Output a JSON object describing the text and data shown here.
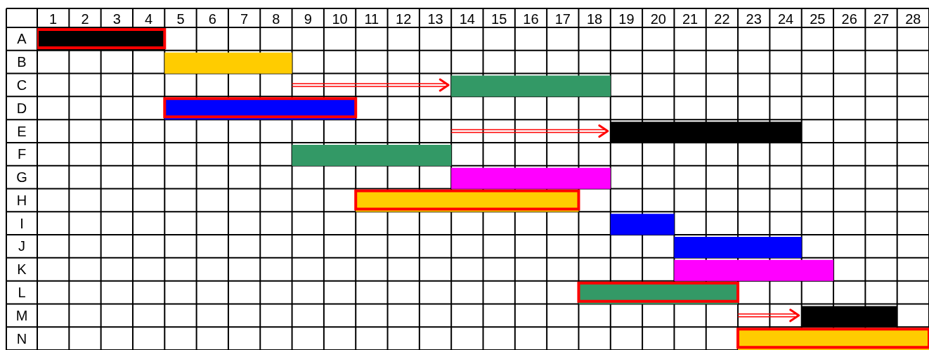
{
  "chart_data": {
    "type": "bar",
    "orientation": "horizontal",
    "categories": [
      "A",
      "B",
      "C",
      "D",
      "E",
      "F",
      "G",
      "H",
      "I",
      "J",
      "K",
      "L",
      "M",
      "N"
    ],
    "series": [
      {
        "base": [
          0,
          4,
          13,
          4,
          18,
          8,
          13,
          10,
          18,
          20,
          20,
          17,
          24,
          22
        ],
        "values": [
          4,
          4,
          5,
          6,
          6,
          5,
          5,
          7,
          2,
          4,
          5,
          5,
          3,
          6
        ],
        "colors": [
          "#000000",
          "#ffcc00",
          "#339966",
          "#0000ff",
          "#000000",
          "#339966",
          "#ff00ff",
          "#ffcc00",
          "#0000ff",
          "#0000ff",
          "#ff00ff",
          "#339966",
          "#000000",
          "#ffcc00"
        ]
      },
      {
        "base": [
          0,
          null,
          null,
          4,
          null,
          null,
          null,
          10,
          null,
          null,
          null,
          17,
          null,
          22
        ],
        "values": [
          4,
          null,
          null,
          6,
          null,
          null,
          null,
          7,
          null,
          null,
          null,
          5,
          null,
          6
        ],
        "color": "#ff0000"
      }
    ],
    "xlim": [
      0,
      28
    ],
    "xticks": [
      {
        "value": 0.5,
        "label": "1"
      },
      {
        "value": 1.5,
        "label": "2"
      },
      {
        "value": 2.5,
        "label": "3"
      },
      {
        "value": 3.5,
        "label": "4"
      },
      {
        "value": 4.5,
        "label": "5"
      },
      {
        "value": 5.5,
        "label": "6"
      },
      {
        "value": 6.5,
        "label": "7"
      },
      {
        "value": 7.5,
        "label": "8"
      },
      {
        "value": 8.5,
        "label": "9"
      },
      {
        "value": 9.5,
        "label": "10"
      },
      {
        "value": 10.5,
        "label": "11"
      },
      {
        "value": 11.5,
        "label": "12"
      },
      {
        "value": 12.5,
        "label": "13"
      },
      {
        "value": 13.5,
        "label": "14"
      },
      {
        "value": 14.5,
        "label": "15"
      },
      {
        "value": 15.5,
        "label": "16"
      },
      {
        "value": 16.5,
        "label": "17"
      },
      {
        "value": 17.5,
        "label": "18"
      },
      {
        "value": 18.5,
        "label": "19"
      },
      {
        "value": 19.5,
        "label": "20"
      },
      {
        "value": 20.5,
        "label": "21"
      },
      {
        "value": 21.5,
        "label": "22"
      },
      {
        "value": 22.5,
        "label": "23"
      },
      {
        "value": 23.5,
        "label": "24"
      },
      {
        "value": 24.5,
        "label": "25"
      },
      {
        "value": 25.5,
        "label": "26"
      },
      {
        "value": 26.5,
        "label": "27"
      },
      {
        "value": 27.5,
        "label": "28"
      }
    ],
    "grid": true
  }
}
